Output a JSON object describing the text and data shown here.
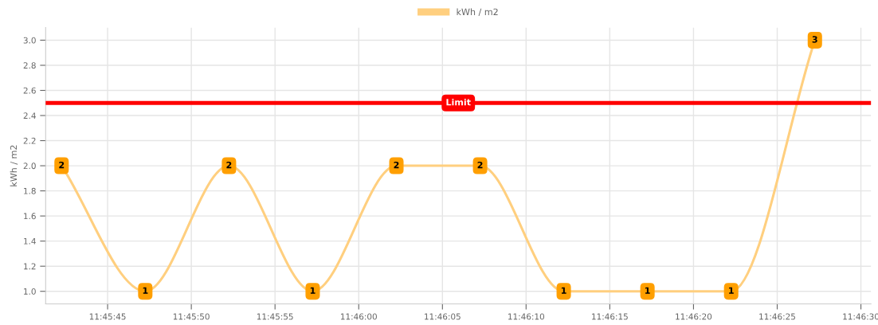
{
  "chart_data": {
    "type": "line",
    "x": [
      11.761736,
      11.763125,
      11.764514,
      11.765903,
      11.767292,
      11.768681,
      11.770069,
      11.771458,
      11.772847,
      11.774236
    ],
    "series": [
      {
        "name": "kWh / m2",
        "color": "#ffcf7f",
        "values": [
          2,
          1,
          2,
          1,
          2,
          2,
          1,
          1,
          1,
          3
        ]
      }
    ],
    "ylabel": "kWh / m2",
    "xlim": [
      11.761472,
      11.775167
    ],
    "xticks": [
      {
        "value": 11.7625,
        "label": "11:45:45"
      },
      {
        "value": 11.763889,
        "label": "11:45:50"
      },
      {
        "value": 11.765278,
        "label": "11:45:55"
      },
      {
        "value": 11.766667,
        "label": "11:46:00"
      },
      {
        "value": 11.768056,
        "label": "11:46:05"
      },
      {
        "value": 11.769444,
        "label": "11:46:10"
      },
      {
        "value": 11.770833,
        "label": "11:46:15"
      },
      {
        "value": 11.772222,
        "label": "11:46:20"
      },
      {
        "value": 11.773611,
        "label": "11:46:25"
      },
      {
        "value": 11.775,
        "label": "11:46:30"
      }
    ],
    "ylim": [
      0.9,
      3.1
    ],
    "yticks": [
      {
        "value": 1.0,
        "label": "1.0"
      },
      {
        "value": 1.2,
        "label": "1.2"
      },
      {
        "value": 1.4,
        "label": "1.4"
      },
      {
        "value": 1.6,
        "label": "1.6"
      },
      {
        "value": 1.8,
        "label": "1.8"
      },
      {
        "value": 2.0,
        "label": "2.0"
      },
      {
        "value": 2.2,
        "label": "2.2"
      },
      {
        "value": 2.4,
        "label": "2.4"
      },
      {
        "value": 2.6,
        "label": "2.6"
      },
      {
        "value": 2.8,
        "label": "2.8"
      },
      {
        "value": 3.0,
        "label": "3.0"
      }
    ],
    "ref_lines": [
      {
        "axis": "y",
        "value": 2.5,
        "label": "Limit",
        "color": "#ff0000"
      }
    ],
    "data_labels": true,
    "marker": "square",
    "grid": true,
    "legend": "top"
  }
}
